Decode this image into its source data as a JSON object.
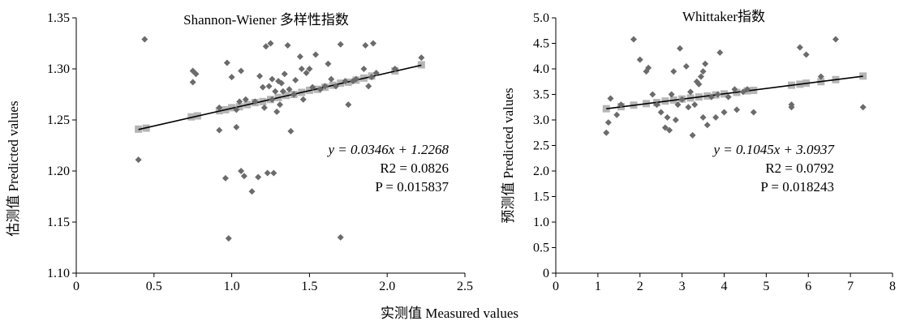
{
  "figure": {
    "shared_xlabel": "实测值 Measured values"
  },
  "colors": {
    "points": "#6b6b6b",
    "fitted": "#b5b5b5",
    "trendline": "#000000",
    "axis": "#000000"
  },
  "chart_data": [
    {
      "type": "scatter",
      "title": "Shannon-Wiener 多样性指数",
      "xlabel": "",
      "ylabel": "估测值 Predicted values",
      "xlim": [
        0,
        2.5
      ],
      "ylim": [
        1.1,
        1.35
      ],
      "x_ticks": [
        "0",
        "0.5",
        "1.0",
        "1.5",
        "2.0",
        "2.5"
      ],
      "y_ticks": [
        "1.10",
        "1.15",
        "1.20",
        "1.25",
        "1.30",
        "1.35"
      ],
      "grid": false,
      "trendline": {
        "slope": 0.0346,
        "intercept": 1.2268,
        "x_range": [
          0.4,
          2.22
        ]
      },
      "annotations": [
        "y = 0.0346x + 1.2268",
        "R2 = 0.0826",
        "P = 0.015837"
      ],
      "series": [
        {
          "role": "observed",
          "marker": "diamond",
          "points": [
            [
              0.4,
              1.211
            ],
            [
              0.44,
              1.329
            ],
            [
              0.75,
              1.298
            ],
            [
              0.75,
              1.287
            ],
            [
              0.77,
              1.295
            ],
            [
              0.92,
              1.24
            ],
            [
              0.92,
              1.262
            ],
            [
              0.96,
              1.193
            ],
            [
              0.97,
              1.306
            ],
            [
              0.98,
              1.134
            ],
            [
              1.0,
              1.292
            ],
            [
              1.03,
              1.243
            ],
            [
              1.03,
              1.26
            ],
            [
              1.05,
              1.268
            ],
            [
              1.06,
              1.298
            ],
            [
              1.06,
              1.2
            ],
            [
              1.08,
              1.195
            ],
            [
              1.09,
              1.27
            ],
            [
              1.13,
              1.18
            ],
            [
              1.15,
              1.268
            ],
            [
              1.17,
              1.194
            ],
            [
              1.18,
              1.293
            ],
            [
              1.2,
              1.282
            ],
            [
              1.21,
              1.262
            ],
            [
              1.22,
              1.322
            ],
            [
              1.23,
              1.198
            ],
            [
              1.24,
              1.283
            ],
            [
              1.25,
              1.325
            ],
            [
              1.26,
              1.29
            ],
            [
              1.26,
              1.27
            ],
            [
              1.27,
              1.198
            ],
            [
              1.28,
              1.278
            ],
            [
              1.29,
              1.258
            ],
            [
              1.3,
              1.288
            ],
            [
              1.31,
              1.265
            ],
            [
              1.32,
              1.286
            ],
            [
              1.33,
              1.278
            ],
            [
              1.34,
              1.295
            ],
            [
              1.36,
              1.323
            ],
            [
              1.37,
              1.28
            ],
            [
              1.38,
              1.239
            ],
            [
              1.4,
              1.275
            ],
            [
              1.41,
              1.289
            ],
            [
              1.44,
              1.312
            ],
            [
              1.45,
              1.3
            ],
            [
              1.46,
              1.27
            ],
            [
              1.48,
              1.296
            ],
            [
              1.5,
              1.3
            ],
            [
              1.52,
              1.282
            ],
            [
              1.54,
              1.314
            ],
            [
              1.57,
              1.28
            ],
            [
              1.6,
              1.283
            ],
            [
              1.62,
              1.305
            ],
            [
              1.64,
              1.29
            ],
            [
              1.67,
              1.283
            ],
            [
              1.7,
              1.324
            ],
            [
              1.7,
              1.135
            ],
            [
              1.73,
              1.288
            ],
            [
              1.75,
              1.265
            ],
            [
              1.78,
              1.288
            ],
            [
              1.8,
              1.29
            ],
            [
              1.85,
              1.3
            ],
            [
              1.86,
              1.323
            ],
            [
              1.88,
              1.283
            ],
            [
              1.9,
              1.292
            ],
            [
              1.91,
              1.325
            ],
            [
              1.93,
              1.296
            ],
            [
              2.05,
              1.3
            ],
            [
              2.22,
              1.311
            ]
          ]
        },
        {
          "role": "fitted",
          "marker": "square",
          "points": [
            [
              0.4,
              1.241
            ],
            [
              0.45,
              1.242
            ],
            [
              0.74,
              1.253
            ],
            [
              0.78,
              1.254
            ],
            [
              0.92,
              1.259
            ],
            [
              0.96,
              1.26
            ],
            [
              1.0,
              1.262
            ],
            [
              1.05,
              1.263
            ],
            [
              1.1,
              1.265
            ],
            [
              1.15,
              1.267
            ],
            [
              1.2,
              1.268
            ],
            [
              1.25,
              1.27
            ],
            [
              1.3,
              1.272
            ],
            [
              1.35,
              1.274
            ],
            [
              1.4,
              1.275
            ],
            [
              1.45,
              1.277
            ],
            [
              1.5,
              1.279
            ],
            [
              1.55,
              1.28
            ],
            [
              1.6,
              1.282
            ],
            [
              1.65,
              1.284
            ],
            [
              1.7,
              1.286
            ],
            [
              1.75,
              1.287
            ],
            [
              1.8,
              1.289
            ],
            [
              1.85,
              1.291
            ],
            [
              1.9,
              1.293
            ],
            [
              2.05,
              1.298
            ],
            [
              2.22,
              1.304
            ]
          ]
        }
      ]
    },
    {
      "type": "scatter",
      "title": "Whittaker指数",
      "xlabel": "",
      "ylabel": "预测值 Predicted values",
      "xlim": [
        0,
        8
      ],
      "ylim": [
        0,
        5.0
      ],
      "x_ticks": [
        "0",
        "1",
        "2",
        "3",
        "4",
        "5",
        "6",
        "7",
        "8"
      ],
      "y_ticks": [
        "0",
        "0.5",
        "1.0",
        "1.5",
        "2.0",
        "2.5",
        "3.0",
        "3.5",
        "4.0",
        "4.5",
        "5.0"
      ],
      "grid": false,
      "trendline": {
        "slope": 0.1045,
        "intercept": 3.0937,
        "x_range": [
          1.2,
          7.3
        ]
      },
      "annotations": [
        "y = 0.1045x + 3.0937",
        "R2 = 0.0792",
        "P = 0.018243"
      ],
      "series": [
        {
          "role": "observed",
          "marker": "diamond",
          "points": [
            [
              1.2,
              2.75
            ],
            [
              1.25,
              2.95
            ],
            [
              1.3,
              3.42
            ],
            [
              1.45,
              3.1
            ],
            [
              1.55,
              3.3
            ],
            [
              1.85,
              4.58
            ],
            [
              2.0,
              4.18
            ],
            [
              2.15,
              3.95
            ],
            [
              2.2,
              4.02
            ],
            [
              2.3,
              3.5
            ],
            [
              2.4,
              3.3
            ],
            [
              2.5,
              3.15
            ],
            [
              2.6,
              2.85
            ],
            [
              2.65,
              3.05
            ],
            [
              2.7,
              2.8
            ],
            [
              2.75,
              3.5
            ],
            [
              2.8,
              3.95
            ],
            [
              2.85,
              3.0
            ],
            [
              2.9,
              3.3
            ],
            [
              2.95,
              4.4
            ],
            [
              3.0,
              3.4
            ],
            [
              3.1,
              4.05
            ],
            [
              3.15,
              3.25
            ],
            [
              3.2,
              3.55
            ],
            [
              3.25,
              2.7
            ],
            [
              3.3,
              3.3
            ],
            [
              3.35,
              3.75
            ],
            [
              3.4,
              3.7
            ],
            [
              3.45,
              3.85
            ],
            [
              3.5,
              3.05
            ],
            [
              3.5,
              3.95
            ],
            [
              3.55,
              4.1
            ],
            [
              3.6,
              2.9
            ],
            [
              3.7,
              3.45
            ],
            [
              3.8,
              3.05
            ],
            [
              3.85,
              3.5
            ],
            [
              3.9,
              4.32
            ],
            [
              4.0,
              3.15
            ],
            [
              4.1,
              3.45
            ],
            [
              4.25,
              3.6
            ],
            [
              4.3,
              3.2
            ],
            [
              4.45,
              3.55
            ],
            [
              4.55,
              3.6
            ],
            [
              4.7,
              3.15
            ],
            [
              5.6,
              3.25
            ],
            [
              5.6,
              3.3
            ],
            [
              5.8,
              4.42
            ],
            [
              5.95,
              4.28
            ],
            [
              6.3,
              3.85
            ],
            [
              6.65,
              4.58
            ],
            [
              7.3,
              3.25
            ]
          ]
        },
        {
          "role": "fitted",
          "marker": "square",
          "points": [
            [
              1.2,
              3.22
            ],
            [
              1.55,
              3.26
            ],
            [
              1.85,
              3.29
            ],
            [
              2.15,
              3.32
            ],
            [
              2.4,
              3.34
            ],
            [
              2.6,
              3.37
            ],
            [
              2.8,
              3.39
            ],
            [
              3.0,
              3.41
            ],
            [
              3.2,
              3.43
            ],
            [
              3.4,
              3.45
            ],
            [
              3.6,
              3.47
            ],
            [
              3.8,
              3.49
            ],
            [
              4.0,
              3.51
            ],
            [
              4.3,
              3.54
            ],
            [
              4.55,
              3.57
            ],
            [
              4.7,
              3.58
            ],
            [
              5.6,
              3.68
            ],
            [
              5.8,
              3.7
            ],
            [
              5.95,
              3.72
            ],
            [
              6.3,
              3.75
            ],
            [
              6.65,
              3.79
            ],
            [
              7.3,
              3.86
            ]
          ]
        }
      ]
    }
  ]
}
